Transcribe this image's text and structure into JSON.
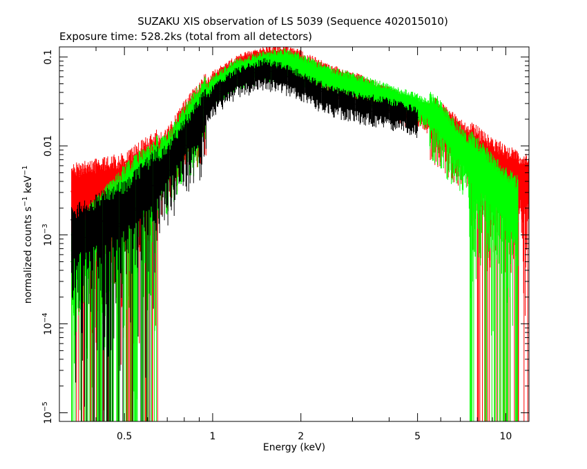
{
  "chart_data": {
    "type": "scatter",
    "title": "SUZAKU XIS observation of LS 5039 (Sequence 402015010)",
    "subtitle": "Exposure time: 528.2ks (total from all detectors)",
    "xlabel": "Energy (keV)",
    "ylabel": {
      "prefix": "normalized counts s",
      "exp1": "−1",
      "mid": " keV",
      "exp2": "−1"
    },
    "x_scale": "log",
    "y_scale": "log",
    "xlim": [
      0.3,
      12
    ],
    "ylim": [
      8e-06,
      0.13
    ],
    "grid": false,
    "x_ticks": [
      {
        "value": 0.5,
        "label": "0.5"
      },
      {
        "value": 1,
        "label": "1"
      },
      {
        "value": 2,
        "label": "2"
      },
      {
        "value": 5,
        "label": "5"
      },
      {
        "value": 10,
        "label": "10"
      }
    ],
    "y_ticks": [
      {
        "value": 0.1,
        "label": "0.1"
      },
      {
        "value": 0.01,
        "label": "0.01"
      },
      {
        "value": 0.001,
        "base": "10",
        "exp": "−3"
      },
      {
        "value": 0.0001,
        "base": "10",
        "exp": "−4"
      },
      {
        "value": 1e-05,
        "base": "10",
        "exp": "−5"
      }
    ],
    "series": [
      {
        "color": "#ff0000",
        "energy_keV": [
          0.33,
          0.5,
          0.7,
          0.8,
          0.9,
          1.0,
          1.2,
          1.5,
          1.8,
          2.0,
          2.5,
          3.0,
          4.0,
          5.0,
          5.8,
          6.5,
          7.0,
          8.0,
          9.0,
          10.0,
          12.0
        ],
        "counts": [
          0.003,
          0.004,
          0.009,
          0.018,
          0.03,
          0.05,
          0.075,
          0.095,
          0.1,
          0.085,
          0.06,
          0.05,
          0.033,
          0.024,
          0.02,
          0.015,
          0.012,
          0.008,
          0.006,
          0.005,
          0.004
        ]
      },
      {
        "color": "#00ff00",
        "energy_keV": [
          0.33,
          0.5,
          0.7,
          0.8,
          0.9,
          1.0,
          1.2,
          1.5,
          1.8,
          2.0,
          2.5,
          3.0,
          4.0,
          5.0,
          5.8,
          6.5,
          7.0,
          8.0,
          9.0,
          10.0,
          11.0
        ],
        "counts": [
          0.0006,
          0.003,
          0.008,
          0.016,
          0.028,
          0.045,
          0.068,
          0.085,
          0.09,
          0.078,
          0.057,
          0.048,
          0.036,
          0.028,
          0.022,
          0.013,
          0.01,
          0.006,
          0.004,
          0.0028,
          0.0022
        ]
      },
      {
        "color": "#000000",
        "energy_keV": [
          0.33,
          0.5,
          0.7,
          0.8,
          0.9,
          1.0,
          1.2,
          1.5,
          1.8,
          2.0,
          2.5,
          3.0,
          4.0,
          5.0
        ],
        "counts": [
          0.001,
          0.002,
          0.006,
          0.012,
          0.02,
          0.035,
          0.055,
          0.07,
          0.06,
          0.05,
          0.035,
          0.03,
          0.025,
          0.02
        ]
      }
    ]
  }
}
